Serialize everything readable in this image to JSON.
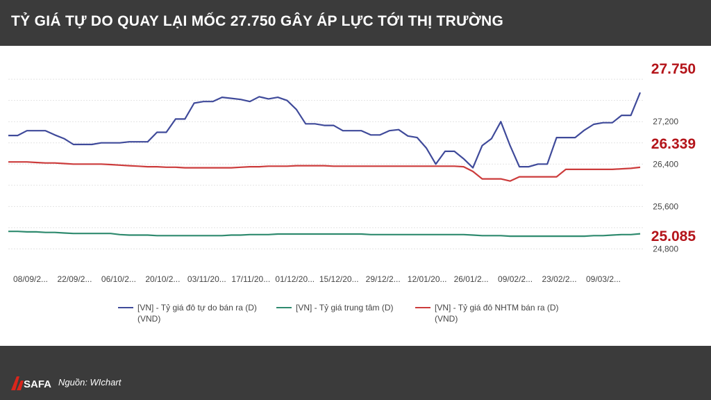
{
  "header": {
    "title": "TỶ GIÁ TỰ DO QUAY LẠI MỐC 27.750 GÂY ÁP LỰC TỚI THỊ TRƯỜNG"
  },
  "footer": {
    "logo_text": "SAFA",
    "source": "Nguồn: WIchart"
  },
  "colors": {
    "header_bg": "#3b3b3b",
    "free_market": "#3f4a9a",
    "central": "#2e8a6e",
    "commercial": "#cc3b3b",
    "callout": "#b4141a"
  },
  "chart_data": {
    "type": "line",
    "x_tick_labels": [
      "08/09/2...",
      "22/09/2...",
      "06/10/2...",
      "20/10/2...",
      "03/11/20...",
      "17/11/20...",
      "01/12/20...",
      "15/12/20...",
      "29/12/2...",
      "12/01/20...",
      "26/01/2...",
      "09/02/2...",
      "23/02/2...",
      "09/03/2..."
    ],
    "y_tick_labels": [
      {
        "label": "27,200",
        "value": 27200
      },
      {
        "label": "26,400",
        "value": 26400
      },
      {
        "label": "25,600",
        "value": 25600
      },
      {
        "label": "24,800",
        "value": 24800
      }
    ],
    "ylim": [
      24700,
      28500
    ],
    "grid": true,
    "legend_position": "bottom",
    "series": [
      {
        "name": "[VN] - Tỷ giá đô tự do bán ra (D) (VND)",
        "color": "#3f4a9a",
        "end_label": "27.750",
        "values": [
          [
            0,
            26940
          ],
          [
            1,
            26940
          ],
          [
            2,
            27030
          ],
          [
            3,
            27030
          ],
          [
            4,
            27030
          ],
          [
            5,
            26950
          ],
          [
            6,
            26880
          ],
          [
            7,
            26770
          ],
          [
            8,
            26770
          ],
          [
            9,
            26770
          ],
          [
            10,
            26800
          ],
          [
            11,
            26800
          ],
          [
            12,
            26800
          ],
          [
            13,
            26820
          ],
          [
            14,
            26820
          ],
          [
            15,
            26820
          ],
          [
            16,
            27000
          ],
          [
            17,
            27000
          ],
          [
            18,
            27250
          ],
          [
            19,
            27250
          ],
          [
            20,
            27550
          ],
          [
            21,
            27580
          ],
          [
            22,
            27580
          ],
          [
            23,
            27660
          ],
          [
            24,
            27640
          ],
          [
            25,
            27620
          ],
          [
            26,
            27580
          ],
          [
            27,
            27670
          ],
          [
            28,
            27630
          ],
          [
            29,
            27660
          ],
          [
            30,
            27600
          ],
          [
            31,
            27430
          ],
          [
            32,
            27160
          ],
          [
            33,
            27160
          ],
          [
            34,
            27130
          ],
          [
            35,
            27130
          ],
          [
            36,
            27030
          ],
          [
            37,
            27030
          ],
          [
            38,
            27030
          ],
          [
            39,
            26950
          ],
          [
            40,
            26950
          ],
          [
            41,
            27030
          ],
          [
            42,
            27050
          ],
          [
            43,
            26930
          ],
          [
            44,
            26900
          ],
          [
            45,
            26700
          ],
          [
            46,
            26400
          ],
          [
            47,
            26640
          ],
          [
            48,
            26640
          ],
          [
            49,
            26500
          ],
          [
            50,
            26330
          ],
          [
            51,
            26750
          ],
          [
            52,
            26880
          ],
          [
            53,
            27200
          ],
          [
            54,
            26750
          ],
          [
            55,
            26350
          ],
          [
            56,
            26350
          ],
          [
            57,
            26400
          ],
          [
            58,
            26400
          ],
          [
            59,
            26900
          ],
          [
            60,
            26900
          ],
          [
            61,
            26900
          ],
          [
            62,
            27040
          ],
          [
            63,
            27150
          ],
          [
            64,
            27180
          ],
          [
            65,
            27180
          ],
          [
            66,
            27320
          ],
          [
            67,
            27320
          ],
          [
            68,
            27750
          ]
        ]
      },
      {
        "name": "[VN] - Tỷ giá trung tâm (D)",
        "color": "#2e8a6e",
        "end_label": "25.085",
        "values": [
          [
            0,
            25130
          ],
          [
            1,
            25130
          ],
          [
            2,
            25120
          ],
          [
            3,
            25120
          ],
          [
            4,
            25110
          ],
          [
            5,
            25110
          ],
          [
            6,
            25100
          ],
          [
            7,
            25090
          ],
          [
            8,
            25090
          ],
          [
            9,
            25090
          ],
          [
            10,
            25090
          ],
          [
            11,
            25090
          ],
          [
            12,
            25070
          ],
          [
            13,
            25060
          ],
          [
            14,
            25060
          ],
          [
            15,
            25060
          ],
          [
            16,
            25050
          ],
          [
            17,
            25050
          ],
          [
            18,
            25050
          ],
          [
            19,
            25050
          ],
          [
            20,
            25050
          ],
          [
            21,
            25050
          ],
          [
            22,
            25050
          ],
          [
            23,
            25050
          ],
          [
            24,
            25060
          ],
          [
            25,
            25060
          ],
          [
            26,
            25070
          ],
          [
            27,
            25070
          ],
          [
            28,
            25070
          ],
          [
            29,
            25080
          ],
          [
            30,
            25080
          ],
          [
            31,
            25080
          ],
          [
            32,
            25080
          ],
          [
            33,
            25080
          ],
          [
            34,
            25080
          ],
          [
            35,
            25080
          ],
          [
            36,
            25080
          ],
          [
            37,
            25080
          ],
          [
            38,
            25080
          ],
          [
            39,
            25070
          ],
          [
            40,
            25070
          ],
          [
            41,
            25070
          ],
          [
            42,
            25070
          ],
          [
            43,
            25070
          ],
          [
            44,
            25070
          ],
          [
            45,
            25070
          ],
          [
            46,
            25070
          ],
          [
            47,
            25070
          ],
          [
            48,
            25070
          ],
          [
            49,
            25070
          ],
          [
            50,
            25060
          ],
          [
            51,
            25050
          ],
          [
            52,
            25050
          ],
          [
            53,
            25050
          ],
          [
            54,
            25040
          ],
          [
            55,
            25040
          ],
          [
            56,
            25040
          ],
          [
            57,
            25040
          ],
          [
            58,
            25040
          ],
          [
            59,
            25040
          ],
          [
            60,
            25040
          ],
          [
            61,
            25040
          ],
          [
            62,
            25040
          ],
          [
            63,
            25050
          ],
          [
            64,
            25050
          ],
          [
            65,
            25060
          ],
          [
            66,
            25070
          ],
          [
            67,
            25070
          ],
          [
            68,
            25085
          ]
        ]
      },
      {
        "name": "[VN] - Tỷ giá đô NHTM bán ra (D) (VND)",
        "color": "#cc3b3b",
        "end_label": "26.339",
        "values": [
          [
            0,
            26440
          ],
          [
            1,
            26440
          ],
          [
            2,
            26440
          ],
          [
            3,
            26430
          ],
          [
            4,
            26420
          ],
          [
            5,
            26420
          ],
          [
            6,
            26410
          ],
          [
            7,
            26400
          ],
          [
            8,
            26400
          ],
          [
            9,
            26400
          ],
          [
            10,
            26400
          ],
          [
            11,
            26390
          ],
          [
            12,
            26380
          ],
          [
            13,
            26370
          ],
          [
            14,
            26360
          ],
          [
            15,
            26350
          ],
          [
            16,
            26350
          ],
          [
            17,
            26340
          ],
          [
            18,
            26340
          ],
          [
            19,
            26330
          ],
          [
            20,
            26330
          ],
          [
            21,
            26330
          ],
          [
            22,
            26330
          ],
          [
            23,
            26330
          ],
          [
            24,
            26330
          ],
          [
            25,
            26340
          ],
          [
            26,
            26350
          ],
          [
            27,
            26350
          ],
          [
            28,
            26360
          ],
          [
            29,
            26360
          ],
          [
            30,
            26360
          ],
          [
            31,
            26370
          ],
          [
            32,
            26370
          ],
          [
            33,
            26370
          ],
          [
            34,
            26370
          ],
          [
            35,
            26360
          ],
          [
            36,
            26360
          ],
          [
            37,
            26360
          ],
          [
            38,
            26360
          ],
          [
            39,
            26360
          ],
          [
            40,
            26360
          ],
          [
            41,
            26360
          ],
          [
            42,
            26360
          ],
          [
            43,
            26360
          ],
          [
            44,
            26360
          ],
          [
            45,
            26360
          ],
          [
            46,
            26360
          ],
          [
            47,
            26360
          ],
          [
            48,
            26360
          ],
          [
            49,
            26350
          ],
          [
            50,
            26260
          ],
          [
            51,
            26120
          ],
          [
            52,
            26120
          ],
          [
            53,
            26120
          ],
          [
            54,
            26080
          ],
          [
            55,
            26160
          ],
          [
            56,
            26160
          ],
          [
            57,
            26160
          ],
          [
            58,
            26160
          ],
          [
            59,
            26160
          ],
          [
            60,
            26300
          ],
          [
            61,
            26300
          ],
          [
            62,
            26300
          ],
          [
            63,
            26300
          ],
          [
            64,
            26300
          ],
          [
            65,
            26300
          ],
          [
            66,
            26310
          ],
          [
            67,
            26320
          ],
          [
            68,
            26339
          ]
        ]
      }
    ]
  }
}
